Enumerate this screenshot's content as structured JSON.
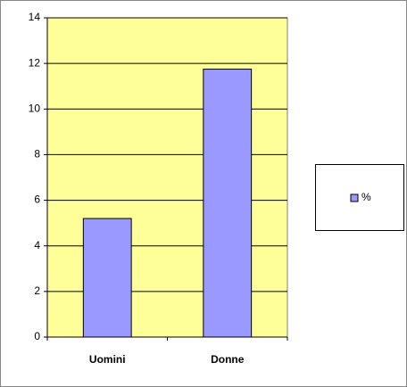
{
  "chart_data": {
    "type": "bar",
    "categories": [
      "Uomini",
      "Donne"
    ],
    "series": [
      {
        "name": "%",
        "color": "#9999ff",
        "values": [
          5.2,
          11.75
        ]
      }
    ],
    "ylim": [
      0,
      14
    ],
    "yticks": [
      0,
      2,
      4,
      6,
      8,
      10,
      12,
      14
    ],
    "grid": true,
    "legend": "right",
    "plot_background": "#ffff99"
  }
}
